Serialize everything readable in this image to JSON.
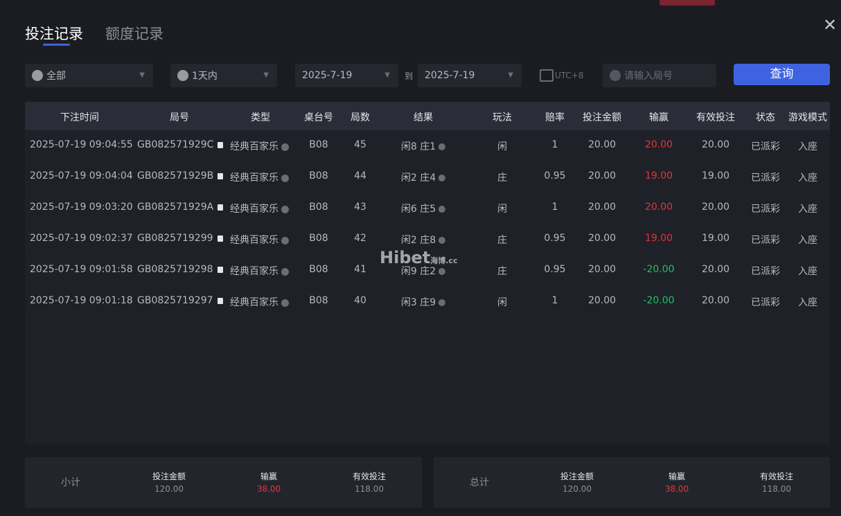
{
  "logo_text": "",
  "tabs": [
    {
      "label": "投注记录",
      "active": true
    },
    {
      "label": "额度记录",
      "active": false
    }
  ],
  "filters": {
    "game": "全部",
    "range": "1天内",
    "date_from": "2025-7-19",
    "to_label": "到",
    "date_to": "2025-7-19",
    "timezone": "UTC+8",
    "search_placeholder": "请输入局号",
    "query_label": "查询"
  },
  "table": {
    "headers": [
      "下注时间",
      "局号",
      "类型",
      "桌台号",
      "局数",
      "结果",
      "玩法",
      "赔率",
      "投注金额",
      "输赢",
      "有效投注",
      "状态",
      "游戏模式"
    ],
    "rows": [
      [
        "2025-07-19 09:04:55",
        "GB082571929C",
        "经典百家乐",
        "B08",
        "45",
        "闲8 庄1",
        "闲",
        "1",
        "20.00",
        "20.00",
        "20.00",
        "已派彩",
        "入座"
      ],
      [
        "2025-07-19 09:04:04",
        "GB082571929B",
        "经典百家乐",
        "B08",
        "44",
        "闲2 庄4",
        "庄",
        "0.95",
        "20.00",
        "19.00",
        "19.00",
        "已派彩",
        "入座"
      ],
      [
        "2025-07-19 09:03:20",
        "GB082571929A",
        "经典百家乐",
        "B08",
        "43",
        "闲6 庄5",
        "闲",
        "1",
        "20.00",
        "20.00",
        "20.00",
        "已派彩",
        "入座"
      ],
      [
        "2025-07-19 09:02:37",
        "GB0825719299",
        "经典百家乐",
        "B08",
        "42",
        "闲2 庄8",
        "庄",
        "0.95",
        "20.00",
        "19.00",
        "19.00",
        "已派彩",
        "入座"
      ],
      [
        "2025-07-19 09:01:58",
        "GB0825719298",
        "经典百家乐",
        "B08",
        "41",
        "闲9 庄2",
        "庄",
        "0.95",
        "20.00",
        "-20.00",
        "20.00",
        "已派彩",
        "入座"
      ],
      [
        "2025-07-19 09:01:18",
        "GB0825719297",
        "经典百家乐",
        "B08",
        "40",
        "闲3 庄9",
        "闲",
        "1",
        "20.00",
        "-20.00",
        "20.00",
        "已派彩",
        "入座"
      ]
    ]
  },
  "watermark": {
    "main": "Hibet",
    "sub": "海博.cc"
  },
  "subtotal": {
    "label": "小计",
    "bet_label": "投注金额",
    "bet": "120.00",
    "win_label": "输赢",
    "win": "38.00",
    "valid_label": "有效投注",
    "valid": "118.00"
  },
  "total": {
    "label": "总计",
    "bet_label": "投注金额",
    "bet": "120.00",
    "win_label": "输赢",
    "win": "38.00",
    "valid_label": "有效投注",
    "valid": "118.00"
  },
  "colors": {
    "accent": "#3f63e0",
    "win": "#e0363b",
    "loss": "#1fc463"
  }
}
